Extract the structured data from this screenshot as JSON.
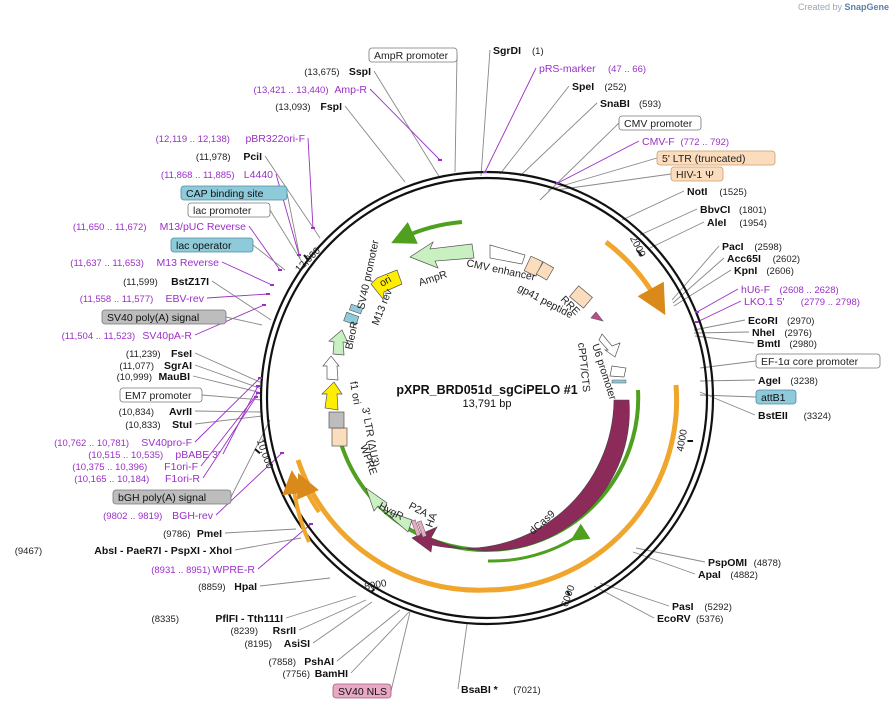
{
  "credit": {
    "created_by": "Created by",
    "app": "SnapGene"
  },
  "center": {
    "title": "pXPR_BRD051d_sgCiPELO #1",
    "length": "13,791 bp"
  },
  "ticks": [
    "2000",
    "4000",
    "6000",
    "8000",
    "10,000",
    "12,000"
  ],
  "sites": [
    {
      "name": "SgrDI",
      "pos": "(1)"
    },
    {
      "name": "SpeI",
      "pos": "(252)"
    },
    {
      "name": "SnaBI",
      "pos": "(593)"
    },
    {
      "name": "NotI",
      "pos": "(1525)"
    },
    {
      "name": "BbvCI",
      "pos": "(1801)"
    },
    {
      "name": "AleI",
      "pos": "(1954)"
    },
    {
      "name": "PacI",
      "pos": "(2598)"
    },
    {
      "name": "Acc65I",
      "pos": "(2602)"
    },
    {
      "name": "KpnI",
      "pos": "(2606)"
    },
    {
      "name": "EcoRI",
      "pos": "(2970)"
    },
    {
      "name": "NheI",
      "pos": "(2976)"
    },
    {
      "name": "BmtI",
      "pos": "(2980)"
    },
    {
      "name": "AgeI",
      "pos": "(3238)"
    },
    {
      "name": "BstEII",
      "pos": "(3324)"
    },
    {
      "name": "PspOMI",
      "pos": "(4878)"
    },
    {
      "name": "ApaI",
      "pos": "(4882)"
    },
    {
      "name": "PasI",
      "pos": "(5292)"
    },
    {
      "name": "EcoRV",
      "pos": "(5376)"
    },
    {
      "name": "BsaBI *",
      "pos": "(7021)"
    },
    {
      "name": "BamHI",
      "pos": "(7756)"
    },
    {
      "name": "PshAI",
      "pos": "(7858)"
    },
    {
      "name": "AsiSI",
      "pos": "(8195)"
    },
    {
      "name": "RsrII",
      "pos": "(8239)"
    },
    {
      "name": "PflFI - Tth111I",
      "pos": "(8335)"
    },
    {
      "name": "HpaI",
      "pos": "(8859)"
    },
    {
      "name": "AbsI - PaeR7I - PspXI - XhoI",
      "pos": "(9467)"
    },
    {
      "name": "PmeI",
      "pos": "(9786)"
    },
    {
      "name": "StuI",
      "pos": "(10,833)"
    },
    {
      "name": "AvrII",
      "pos": "(10,834)"
    },
    {
      "name": "MauBI",
      "pos": "(10,999)"
    },
    {
      "name": "SgrAI",
      "pos": "(11,077)"
    },
    {
      "name": "FseI",
      "pos": "(11,239)"
    },
    {
      "name": "BstZ17I",
      "pos": "(11,599)"
    },
    {
      "name": "PciI",
      "pos": "(11,978)"
    },
    {
      "name": "FspI",
      "pos": "(13,093)"
    },
    {
      "name": "SspI",
      "pos": "(13,675)"
    }
  ],
  "primers": [
    {
      "name": "pRS-marker",
      "pos": "(47 .. 66)"
    },
    {
      "name": "CMV-F",
      "pos": "(772 .. 792)"
    },
    {
      "name": "hU6-F",
      "pos": "(2608 .. 2628)"
    },
    {
      "name": "LKO.1 5'",
      "pos": "(2779 .. 2798)"
    },
    {
      "name": "WPRE-R",
      "pos": "(8931 .. 8951)"
    },
    {
      "name": "BGH-rev",
      "pos": "(9802 .. 9819)"
    },
    {
      "name": "F1ori-R",
      "pos": "(10,165 .. 10,184)"
    },
    {
      "name": "F1ori-F",
      "pos": "(10,375 .. 10,396)"
    },
    {
      "name": "pBABE 3'",
      "pos": "(10,515 .. 10,535)"
    },
    {
      "name": "SV40pro-F",
      "pos": "(10,762 .. 10,781)"
    },
    {
      "name": "SV40pA-R",
      "pos": "(11,504 .. 11,523)"
    },
    {
      "name": "EBV-rev",
      "pos": "(11,558 .. 11,577)"
    },
    {
      "name": "M13 Reverse",
      "pos": "(11,637 .. 11,653)"
    },
    {
      "name": "M13/pUC Reverse",
      "pos": "(11,650 .. 11,672)"
    },
    {
      "name": "L4440",
      "pos": "(11,868 .. 11,885)"
    },
    {
      "name": "pBR322ori-F",
      "pos": "(12,119 .. 12,138)"
    },
    {
      "name": "Amp-R",
      "pos": "(13,421 .. 13,440)"
    }
  ],
  "boxed": [
    {
      "name": "AmpR promoter",
      "kind": "promoter"
    },
    {
      "name": "CMV promoter",
      "kind": "promoter"
    },
    {
      "name": "5' LTR (truncated)",
      "kind": "ltr"
    },
    {
      "name": "HIV-1 Ψ",
      "kind": "ltr"
    },
    {
      "name": "EF-1α core promoter",
      "kind": "promoter"
    },
    {
      "name": "attB1",
      "kind": "protein_bind"
    },
    {
      "name": "CAP binding site",
      "kind": "protein_bind"
    },
    {
      "name": "lac promoter",
      "kind": "promoter"
    },
    {
      "name": "lac operator",
      "kind": "protein_bind"
    },
    {
      "name": "SV40 poly(A) signal",
      "kind": "terminator"
    },
    {
      "name": "EM7 promoter",
      "kind": "promoter"
    },
    {
      "name": "bGH poly(A) signal",
      "kind": "terminator"
    },
    {
      "name": "SV40 NLS",
      "kind": "nls"
    }
  ],
  "features": [
    "AmpR",
    "CMV enhancer",
    "RRE",
    "gp41 peptide",
    "cPPT/CTS",
    "U6 promoter",
    "dCas9",
    "HA",
    "P2A",
    "HygR",
    "WPRE",
    "3' LTR (ΔU3)",
    "f1 ori",
    "SV40 promoter",
    "BleoR",
    "M13 rev",
    "ori"
  ],
  "colors": {
    "primer": "#9b2fc7",
    "amp": "#c9f0c0",
    "ori": "#ffee00",
    "dcas9": "#8c2b5a",
    "orange_arc": "#f0a62c",
    "green_arc": "#4ea01e",
    "ltr": "#fbdcbd",
    "protein_bind": "#8ecad9",
    "terminator": "#bdbdbd",
    "nls": "#e7a9c4"
  }
}
